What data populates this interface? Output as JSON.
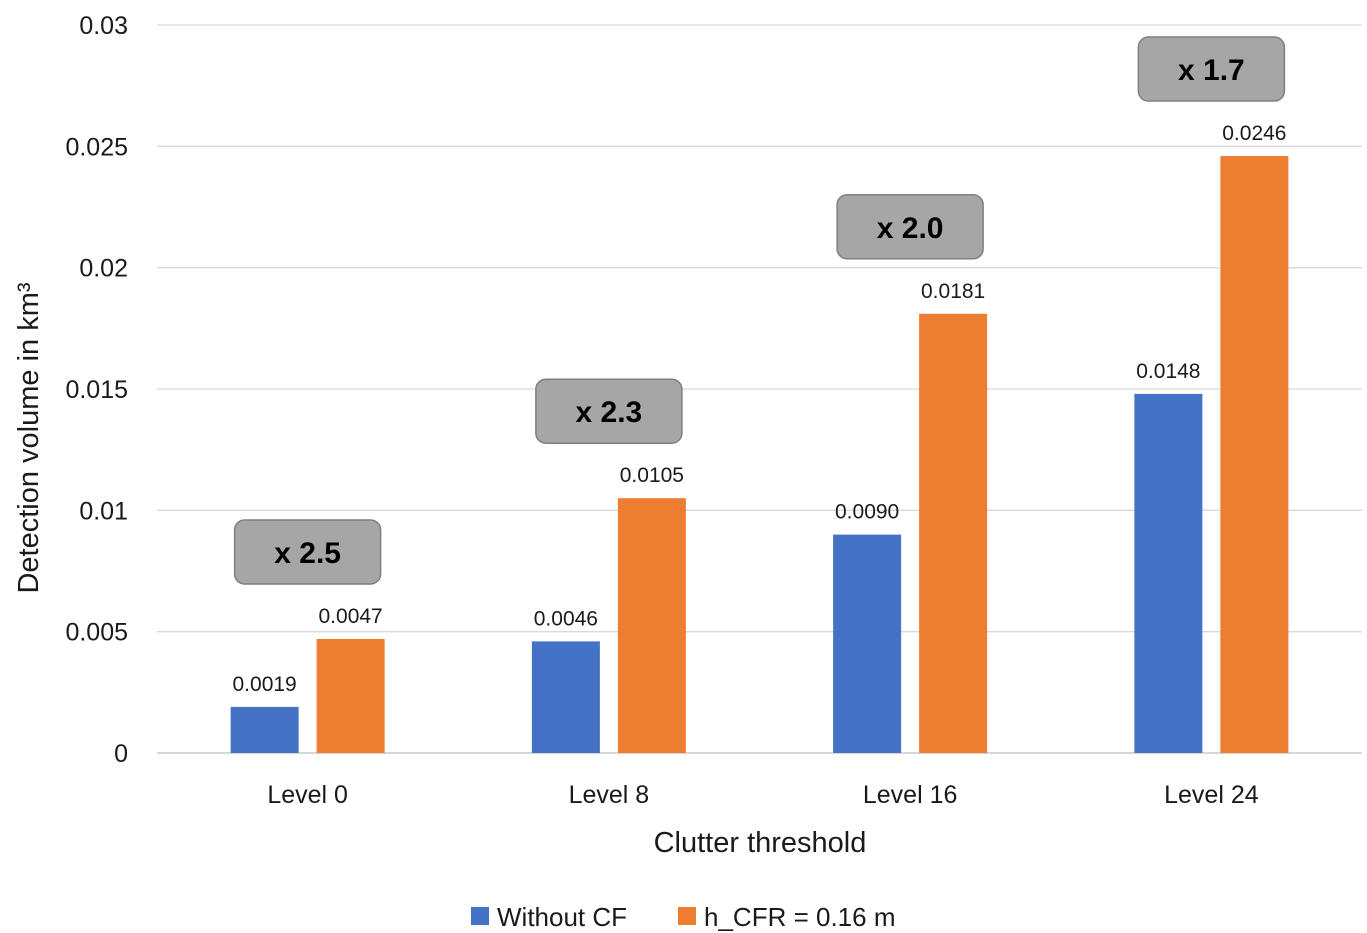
{
  "chart_data": {
    "type": "bar",
    "categories": [
      "Level 0",
      "Level 8",
      "Level 16",
      "Level 24"
    ],
    "series": [
      {
        "name": "Without CF",
        "values": [
          0.0019,
          0.0046,
          0.009,
          0.0148
        ],
        "labels": [
          "0.0019",
          "0.0046",
          "0.0090",
          "0.0148"
        ],
        "color": "#4472C4"
      },
      {
        "name": "h_CFR = 0.16 m",
        "values": [
          0.0047,
          0.0105,
          0.0181,
          0.0246
        ],
        "labels": [
          "0.0047",
          "0.0105",
          "0.0181",
          "0.0246"
        ],
        "color": "#ED7D31"
      }
    ],
    "ratio_annotations": [
      "x 2.5",
      "x 2.3",
      "x 2.0",
      "x 1.7"
    ],
    "annotation_style": {
      "fill": "#A6A6A6",
      "stroke": "#7F7F7F"
    },
    "xlabel": "Clutter threshold",
    "ylabel": "Detection volume in km³",
    "ylim": [
      0,
      0.03
    ],
    "yticks": [
      0,
      0.005,
      0.01,
      0.015,
      0.02,
      0.025,
      0.03
    ],
    "ytick_labels": [
      "0",
      "0.005",
      "0.01",
      "0.015",
      "0.02",
      "0.025",
      "0.03"
    ],
    "gridlines": true,
    "gridline_color": "#D9D9D9",
    "legend_position": "bottom"
  }
}
